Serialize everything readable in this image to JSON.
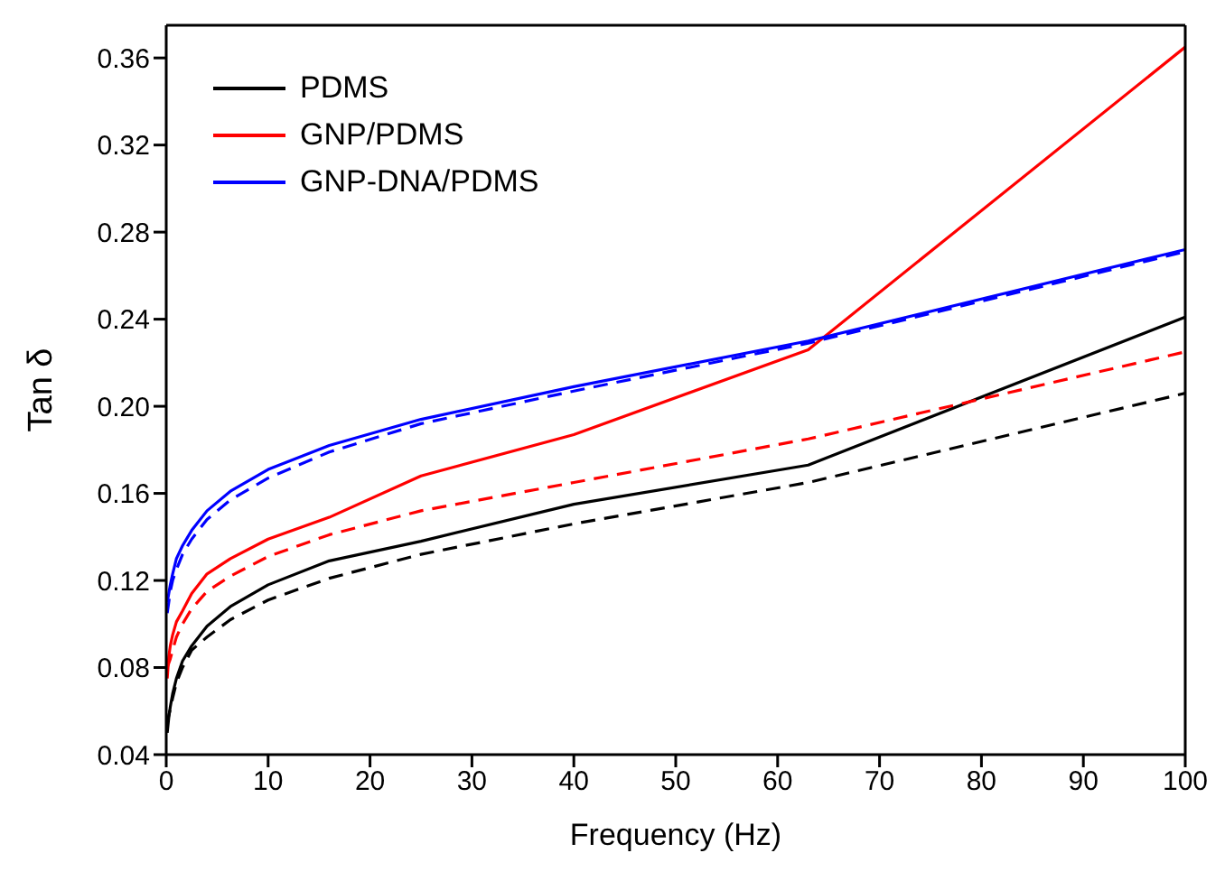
{
  "chart_data": {
    "type": "line",
    "xlabel": "Frequency (Hz)",
    "ylabel": "Tan δ",
    "x": [
      0.1,
      0.25,
      0.4,
      0.63,
      1,
      1.6,
      2.5,
      4,
      6.3,
      10,
      16,
      25,
      40,
      63,
      100
    ],
    "xlim": [
      0,
      100
    ],
    "xticks": [
      0,
      10,
      20,
      30,
      40,
      50,
      60,
      70,
      80,
      90,
      100
    ],
    "ylim": [
      0.04,
      0.375
    ],
    "yticks": [
      0.04,
      0.08,
      0.12,
      0.16,
      {
        "value": 0.2,
        "label": "0.20"
      },
      0.24,
      0.28,
      0.32,
      0.36
    ],
    "grid": false,
    "legend": "top left",
    "marker": "none",
    "series": [
      {
        "name": "PDMS",
        "color": "#000000",
        "line_style": "solid",
        "values": [
          0.05,
          0.057,
          0.062,
          0.068,
          0.075,
          0.083,
          0.09,
          0.099,
          0.108,
          0.118,
          0.129,
          0.138,
          0.155,
          0.173,
          0.241
        ]
      },
      {
        "name": "GNP/PDMS",
        "color": "#ff0000",
        "line_style": "solid",
        "values": [
          0.075,
          0.085,
          0.09,
          0.095,
          0.101,
          0.106,
          0.114,
          0.123,
          0.13,
          0.139,
          0.149,
          0.168,
          0.187,
          0.226,
          0.365
        ]
      },
      {
        "name": "GNP-DNA/PDMS",
        "color": "#0000ff",
        "line_style": "solid",
        "values": [
          0.11,
          0.114,
          0.118,
          0.123,
          0.13,
          0.136,
          0.143,
          0.152,
          0.161,
          0.171,
          0.182,
          0.194,
          0.209,
          0.23,
          0.272
        ]
      },
      {
        "color": "#000000",
        "line_style": "dashed",
        "values": [
          0.054,
          0.058,
          0.061,
          0.066,
          0.073,
          0.08,
          0.088,
          0.094,
          0.102,
          0.111,
          0.121,
          0.132,
          0.146,
          0.165,
          0.206
        ]
      },
      {
        "color": "#ff0000",
        "line_style": "dashed",
        "values": [
          0.08,
          0.082,
          0.084,
          0.088,
          0.094,
          0.1,
          0.107,
          0.115,
          0.122,
          0.131,
          0.141,
          0.152,
          0.165,
          0.185,
          0.225
        ]
      },
      {
        "color": "#0000ff",
        "line_style": "dashed",
        "values": [
          0.105,
          0.11,
          0.115,
          0.12,
          0.125,
          0.132,
          0.139,
          0.148,
          0.157,
          0.167,
          0.179,
          0.192,
          0.207,
          0.229,
          0.271
        ]
      }
    ]
  }
}
